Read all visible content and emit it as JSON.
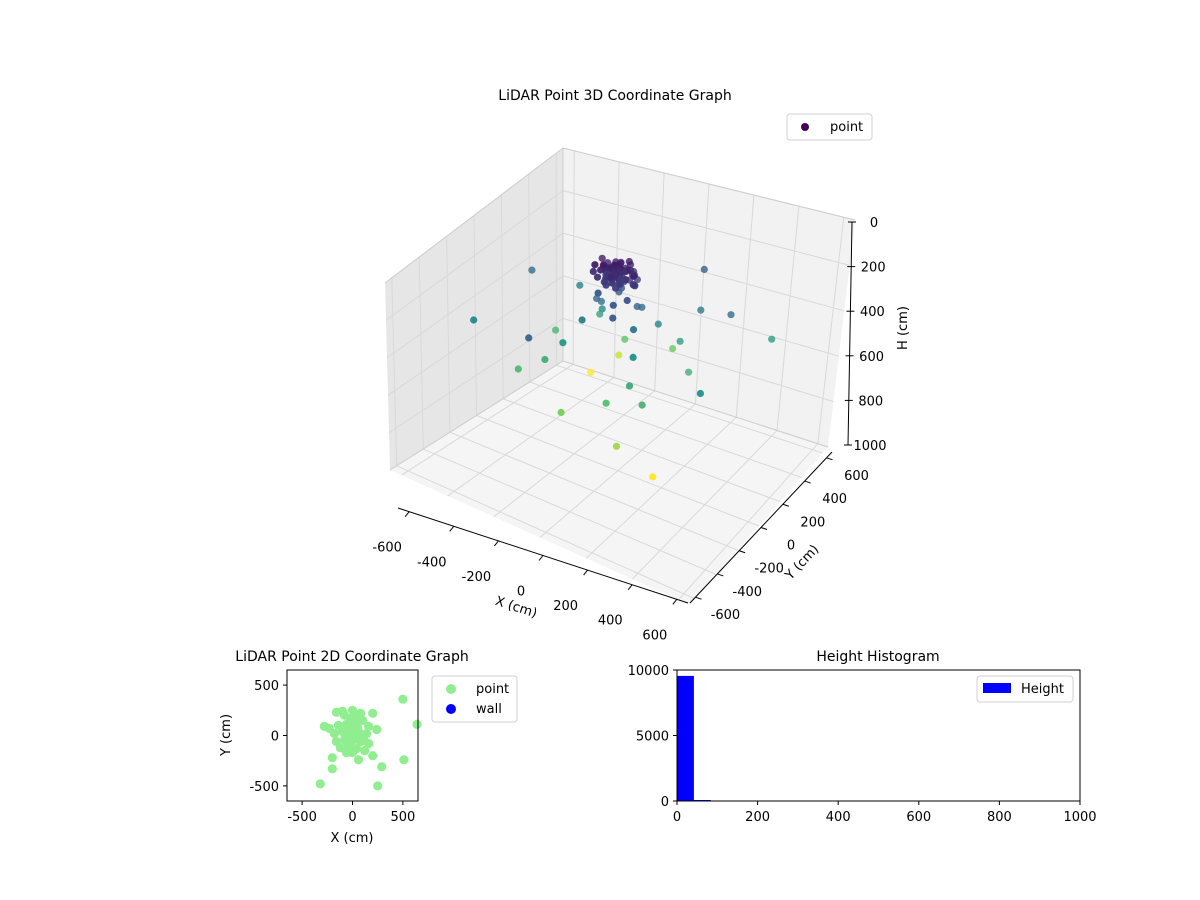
{
  "chart_data": [
    {
      "type": "scatter3d",
      "title": "LiDAR Point 3D Coordinate Graph",
      "xlabel": "X (cm)",
      "ylabel": "Y (cm)",
      "zlabel": "H (cm)",
      "xlim": [
        -650,
        650
      ],
      "ylim": [
        -650,
        650
      ],
      "zlim": [
        1000,
        0
      ],
      "xticks": [
        -600,
        -400,
        -200,
        0,
        200,
        400,
        600
      ],
      "yticks": [
        -600,
        -400,
        -200,
        0,
        200,
        400,
        600
      ],
      "zticks": [
        0,
        200,
        400,
        600,
        800,
        1000
      ],
      "legend": {
        "position": "top-right",
        "entries": [
          "point"
        ]
      },
      "colormap": "viridis",
      "colors": {
        "legend_marker": "#440154",
        "pane_back": "#f2f2f2",
        "pane_side": "#e6e6e6",
        "pane_floor": "#f5f5f5"
      },
      "series": [
        {
          "name": "point",
          "points": [
            [
              -10,
              50,
              80
            ],
            [
              20,
              40,
              90
            ],
            [
              40,
              10,
              85
            ],
            [
              -30,
              20,
              95
            ],
            [
              10,
              -20,
              100
            ],
            [
              50,
              -10,
              110
            ],
            [
              -40,
              -10,
              90
            ],
            [
              0,
              60,
              120
            ],
            [
              30,
              70,
              130
            ],
            [
              -20,
              -40,
              140
            ],
            [
              60,
              30,
              150
            ],
            [
              -60,
              40,
              160
            ],
            [
              15,
              15,
              170
            ],
            [
              -15,
              80,
              180
            ],
            [
              70,
              -30,
              190
            ],
            [
              -70,
              -20,
              200
            ],
            [
              25,
              -60,
              210
            ],
            [
              -25,
              60,
              220
            ],
            [
              90,
              10,
              230
            ],
            [
              -90,
              0,
              240
            ],
            [
              40,
              90,
              160
            ],
            [
              -50,
              90,
              170
            ],
            [
              80,
              60,
              260
            ],
            [
              -100,
              50,
              280
            ],
            [
              110,
              -50,
              300
            ],
            [
              -120,
              -60,
              320
            ],
            [
              130,
              100,
              340
            ],
            [
              -140,
              120,
              360
            ],
            [
              150,
              -120,
              380
            ],
            [
              -160,
              -140,
              400
            ],
            [
              200,
              150,
              420
            ],
            [
              -200,
              200,
              440
            ],
            [
              180,
              -200,
              460
            ],
            [
              -220,
              -180,
              480
            ],
            [
              250,
              220,
              300
            ],
            [
              -280,
              180,
              320
            ],
            [
              260,
              -240,
              500
            ],
            [
              -300,
              -250,
              520
            ],
            [
              100,
              -250,
              540
            ],
            [
              -120,
              260,
              560
            ],
            [
              300,
              50,
              480
            ],
            [
              -330,
              80,
              500
            ],
            [
              60,
              330,
              580
            ],
            [
              -60,
              -330,
              600
            ],
            [
              200,
              -350,
              650
            ],
            [
              -200,
              350,
              700
            ],
            [
              330,
              -300,
              760
            ],
            [
              -300,
              300,
              790
            ],
            [
              500,
              350,
              420
            ],
            [
              -500,
              -250,
              350
            ],
            [
              520,
              -220,
              380
            ],
            [
              -450,
              100,
              260
            ],
            [
              400,
              200,
              270
            ],
            [
              -150,
              -400,
              250
            ],
            [
              150,
              400,
              230
            ],
            [
              -80,
              150,
              200
            ],
            [
              80,
              -150,
              210
            ]
          ]
        }
      ]
    },
    {
      "type": "scatter",
      "title": "LiDAR Point 2D Coordinate Graph",
      "xlabel": "X (cm)",
      "ylabel": "Y (cm)",
      "xlim": [
        -650,
        650
      ],
      "ylim": [
        -650,
        650
      ],
      "xticks": [
        -500,
        0,
        500
      ],
      "yticks": [
        500,
        0,
        -500
      ],
      "legend": {
        "position": "outside-right"
      },
      "series": [
        {
          "name": "point",
          "color": "#90ee90",
          "points": [
            [
              500,
              360
            ],
            [
              640,
              110
            ],
            [
              -320,
              -480
            ],
            [
              -200,
              -330
            ],
            [
              290,
              -310
            ],
            [
              250,
              -500
            ],
            [
              510,
              -240
            ],
            [
              -280,
              90
            ],
            [
              -230,
              70
            ],
            [
              -160,
              230
            ],
            [
              -100,
              240
            ],
            [
              0,
              250
            ],
            [
              80,
              220
            ],
            [
              200,
              220
            ],
            [
              -80,
              200
            ],
            [
              -20,
              170
            ],
            [
              40,
              180
            ],
            [
              100,
              150
            ],
            [
              -140,
              100
            ],
            [
              -60,
              110
            ],
            [
              20,
              120
            ],
            [
              160,
              90
            ],
            [
              240,
              60
            ],
            [
              -180,
              20
            ],
            [
              -100,
              40
            ],
            [
              -20,
              30
            ],
            [
              60,
              40
            ],
            [
              140,
              20
            ],
            [
              -160,
              -60
            ],
            [
              -80,
              -40
            ],
            [
              0,
              -50
            ],
            [
              80,
              -60
            ],
            [
              160,
              -80
            ],
            [
              -120,
              -120
            ],
            [
              -40,
              -100
            ],
            [
              40,
              -130
            ],
            [
              120,
              -150
            ],
            [
              -200,
              -220
            ],
            [
              60,
              -240
            ],
            [
              200,
              -200
            ],
            [
              10,
              0
            ],
            [
              -10,
              60
            ],
            [
              30,
              -20
            ],
            [
              -50,
              -10
            ],
            [
              90,
              0
            ],
            [
              -30,
              80
            ],
            [
              50,
              80
            ],
            [
              0,
              -170
            ],
            [
              -60,
              -170
            ],
            [
              110,
              -30
            ]
          ]
        },
        {
          "name": "wall",
          "color": "#0000ff",
          "points": []
        }
      ]
    },
    {
      "type": "histogram",
      "title": "Height Histogram",
      "xlim": [
        0,
        1000
      ],
      "ylim": [
        0,
        10000
      ],
      "xticks": [
        0,
        200,
        400,
        600,
        800,
        1000
      ],
      "yticks": [
        0,
        5000,
        10000
      ],
      "legend": {
        "position": "top-right"
      },
      "series": [
        {
          "name": "Height",
          "color": "#0000ff",
          "bins": [
            [
              0,
              42,
              9550
            ],
            [
              42,
              84,
              80
            ],
            [
              84,
              126,
              20
            ],
            [
              126,
              168,
              8
            ],
            [
              168,
              210,
              5
            ],
            [
              210,
              252,
              4
            ],
            [
              252,
              294,
              3
            ],
            [
              294,
              336,
              2
            ],
            [
              336,
              378,
              2
            ],
            [
              378,
              420,
              2
            ],
            [
              420,
              462,
              1
            ],
            [
              462,
              504,
              1
            ],
            [
              504,
              546,
              1
            ],
            [
              546,
              588,
              1
            ],
            [
              588,
              630,
              1
            ],
            [
              630,
              672,
              0
            ],
            [
              672,
              714,
              1
            ],
            [
              714,
              756,
              1
            ],
            [
              756,
              798,
              1
            ],
            [
              798,
              840,
              0
            ]
          ]
        }
      ]
    }
  ]
}
